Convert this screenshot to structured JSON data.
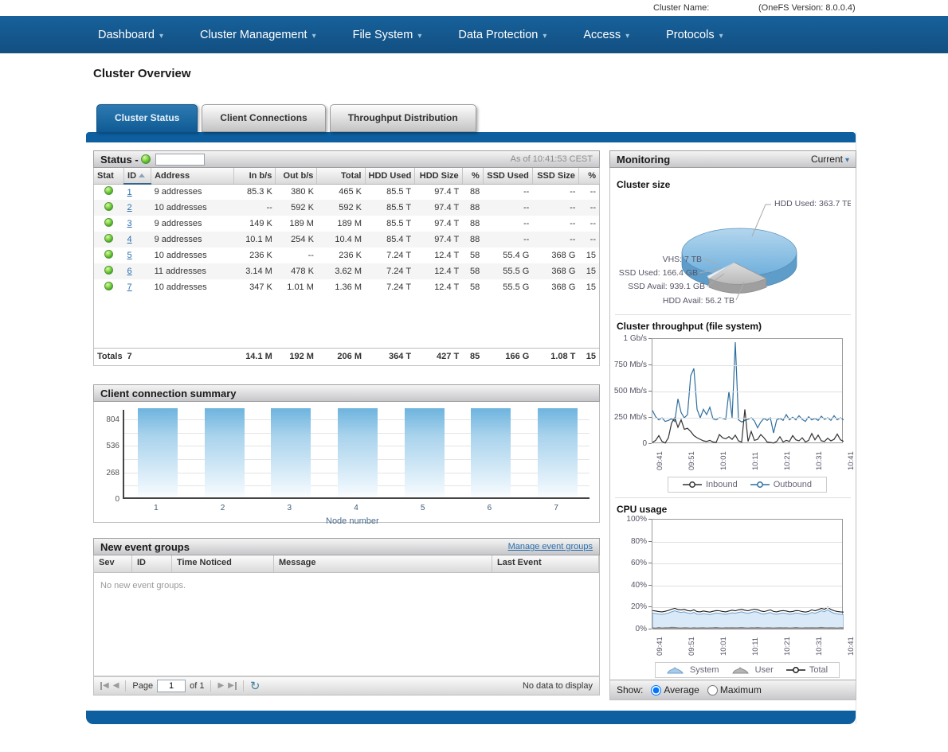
{
  "top_bar": {
    "cluster_name_label": "Cluster Name:",
    "version": "(OneFS Version: 8.0.0.4)"
  },
  "nav": {
    "items": [
      {
        "label": "Dashboard"
      },
      {
        "label": "Cluster Management"
      },
      {
        "label": "File System"
      },
      {
        "label": "Data Protection"
      },
      {
        "label": "Access"
      },
      {
        "label": "Protocols"
      }
    ]
  },
  "page": {
    "title": "Cluster Overview"
  },
  "tabs": [
    {
      "label": "Cluster Status",
      "active": true
    },
    {
      "label": "Client Connections",
      "active": false
    },
    {
      "label": "Throughput Distribution",
      "active": false
    }
  ],
  "status_panel": {
    "title": "Status -",
    "as_of": "As of 10:41:53 CEST",
    "table": {
      "headers": [
        "Stat",
        "ID",
        "Address",
        "In b/s",
        "Out b/s",
        "Total",
        "HDD Used",
        "HDD Size",
        "%",
        "SSD Used",
        "SSD Size",
        "%"
      ],
      "sorted_column": "ID",
      "rows": [
        [
          "1",
          "9 addresses",
          "85.3 K",
          "380 K",
          "465 K",
          "85.5 T",
          "97.4 T",
          "88",
          "--",
          "--",
          "--"
        ],
        [
          "2",
          "10 addresses",
          "--",
          "592 K",
          "592 K",
          "85.5 T",
          "97.4 T",
          "88",
          "--",
          "--",
          "--"
        ],
        [
          "3",
          "9 addresses",
          "149 K",
          "189 M",
          "189 M",
          "85.5 T",
          "97.4 T",
          "88",
          "--",
          "--",
          "--"
        ],
        [
          "4",
          "9 addresses",
          "10.1 M",
          "254 K",
          "10.4 M",
          "85.4 T",
          "97.4 T",
          "88",
          "--",
          "--",
          "--"
        ],
        [
          "5",
          "10 addresses",
          "236 K",
          "--",
          "236 K",
          "7.24 T",
          "12.4 T",
          "58",
          "55.4 G",
          "368 G",
          "15"
        ],
        [
          "6",
          "11 addresses",
          "3.14 M",
          "478 K",
          "3.62 M",
          "7.24 T",
          "12.4 T",
          "58",
          "55.5 G",
          "368 G",
          "15"
        ],
        [
          "7",
          "10 addresses",
          "347 K",
          "1.01 M",
          "1.36 M",
          "7.24 T",
          "12.4 T",
          "58",
          "55.5 G",
          "368 G",
          "15"
        ]
      ],
      "totals": [
        "Totals",
        "7",
        "",
        "14.1 M",
        "192 M",
        "206 M",
        "364 T",
        "427 T",
        "85",
        "166 G",
        "1.08 T",
        "15"
      ]
    }
  },
  "client_connections": {
    "title": "Client connection summary"
  },
  "event_groups": {
    "title": "New event groups",
    "manage_link": "Manage event groups",
    "headers": [
      "Sev",
      "ID",
      "Time Noticed",
      "Message",
      "Last Event"
    ],
    "empty_text": "No new event groups.",
    "pager": {
      "page_label": "Page",
      "page": "1",
      "of": "of 1",
      "status": "No data to display"
    }
  },
  "monitoring": {
    "title": "Monitoring",
    "mode": "Current",
    "cluster_size_title": "Cluster size",
    "throughput_title": "Cluster throughput (file system)",
    "cpu_title": "CPU usage",
    "show": {
      "label": "Show:",
      "options": [
        "Average",
        "Maximum"
      ],
      "selected": "Average"
    }
  },
  "colors": {
    "nav_blue": "#15578c",
    "bar_blue": "#0d5f9f",
    "link": "#2a6fad",
    "outbound": "#2f6f9f",
    "inbound": "#333333",
    "cpu_system_fill": "#d9e9f7",
    "cpu_system_stroke": "#6c9fce",
    "cpu_user": "#9f9f9f",
    "cpu_total": "#1a1a1a",
    "pie_blue": "#7db9e2",
    "pie_gray": "#c4c4c4",
    "status_green": "#54b82e"
  },
  "chart_data": [
    {
      "id": "client_connection_summary",
      "type": "bar",
      "title": "Client connection summary",
      "categories": [
        "1",
        "2",
        "3",
        "4",
        "5",
        "6",
        "7"
      ],
      "values": [
        900,
        900,
        900,
        900,
        900,
        900,
        900
      ],
      "note": "all bars reach the top of the plot (clipped)",
      "xlabel": "Node number",
      "ylabel": "",
      "yticks": [
        0,
        268,
        536,
        804
      ],
      "gridlines": [
        134,
        268,
        402,
        536,
        670,
        804
      ],
      "ylim": [
        0,
        900
      ],
      "legend": "none"
    },
    {
      "id": "cluster_size",
      "type": "pie",
      "title": "Cluster size",
      "slices": [
        {
          "label": "HDD Used",
          "value": 363.7,
          "unit": "TB"
        },
        {
          "label": "VHS",
          "value": 7.0,
          "unit": "TB"
        },
        {
          "label": "SSD Used",
          "value": 166.4,
          "unit": "GB"
        },
        {
          "label": "SSD Avail",
          "value": 939.1,
          "unit": "GB"
        },
        {
          "label": "HDD Avail",
          "value": 56.2,
          "unit": "TB"
        }
      ]
    },
    {
      "id": "cluster_throughput",
      "type": "line",
      "title": "Cluster throughput (file system)",
      "x_ticks": [
        "09:41",
        "09:51",
        "10:01",
        "10:11",
        "10:21",
        "10:31",
        "10:41"
      ],
      "ylim": [
        0,
        1000
      ],
      "yticks_labels": [
        "1 Gb/s",
        "750 Mb/s",
        "500 Mb/s",
        "250 Mb/s",
        "0"
      ],
      "yticks_values": [
        1000,
        750,
        500,
        250,
        0
      ],
      "unit": "Mb/s",
      "legend_position": "bottom",
      "series": [
        {
          "name": "Inbound",
          "values": [
            15,
            35,
            80,
            25,
            10,
            60,
            200,
            250,
            160,
            230,
            140,
            150,
            120,
            80,
            60,
            45,
            30,
            25,
            35,
            20,
            15,
            90,
            60,
            50,
            70,
            45,
            85,
            30,
            20,
            330,
            25,
            120,
            35,
            45,
            90,
            60,
            20,
            15,
            10,
            25,
            70,
            20,
            35,
            25,
            80,
            40,
            30,
            60,
            20,
            35,
            100,
            40,
            85,
            30,
            25,
            55,
            30,
            45,
            95,
            40,
            25
          ]
        },
        {
          "name": "Outbound",
          "values": [
            320,
            260,
            230,
            250,
            215,
            225,
            240,
            215,
            430,
            300,
            250,
            280,
            650,
            720,
            330,
            250,
            330,
            280,
            350,
            240,
            230,
            250,
            245,
            235,
            500,
            250,
            970,
            230,
            210,
            225,
            235,
            250,
            220,
            155,
            210,
            245,
            225,
            250,
            105,
            230,
            245,
            225,
            280,
            230,
            255,
            230,
            270,
            235,
            215,
            260,
            230,
            245,
            225,
            265,
            235,
            250,
            225,
            270,
            230,
            250,
            230
          ]
        }
      ]
    },
    {
      "id": "cpu_usage",
      "type": "area",
      "title": "CPU usage",
      "x_ticks": [
        "09:41",
        "09:51",
        "10:01",
        "10:11",
        "10:21",
        "10:31",
        "10:41"
      ],
      "ylim": [
        0,
        100
      ],
      "yticks_labels": [
        "100%",
        "80%",
        "60%",
        "40%",
        "20%",
        "0%"
      ],
      "yticks_values": [
        100,
        80,
        60,
        40,
        20,
        0
      ],
      "unit": "%",
      "legend_position": "bottom",
      "series": [
        {
          "name": "System",
          "style": "area",
          "values": [
            15,
            14.5,
            14,
            13.8,
            14.2,
            15,
            16,
            17,
            16,
            15.5,
            16,
            15,
            14.5,
            15.5,
            14,
            13.8,
            14.5,
            14,
            13.6,
            14.2,
            15,
            14.8,
            14.2,
            13.8,
            14.5,
            15.2,
            14.8,
            15.5,
            16,
            15.2,
            14.8,
            15.5,
            16.2,
            15.8,
            14.5,
            14,
            14.8,
            15.5,
            14.2,
            13.8,
            14.5,
            15,
            14.5,
            13.8,
            14.2,
            15,
            14.8,
            14,
            13.5,
            14.2,
            15.5,
            14.8,
            15.8,
            17,
            16.2,
            18,
            16,
            14.8,
            14.2,
            13.8,
            13.5
          ]
        },
        {
          "name": "User",
          "style": "area",
          "values": [
            1.5,
            1.2,
            1.8,
            1.4,
            1.6,
            1.5,
            2,
            1.8,
            1.5,
            1.4,
            1.6,
            1.5,
            1.3,
            1.7,
            1.4,
            1.5,
            1.6,
            1.4,
            1.5,
            1.6,
            1.8,
            1.5,
            1.4,
            1.6,
            1.5,
            1.7,
            1.5,
            1.6,
            1.8,
            1.5,
            1.4,
            1.6,
            1.5,
            1.8,
            1.5,
            1.4,
            1.6,
            1.5,
            1.4,
            1.5,
            1.7,
            1.5,
            1.6,
            1.4,
            1.5,
            1.8,
            1.5,
            1.4,
            1.6,
            1.5,
            1.7,
            1.5,
            1.6,
            1.9,
            1.6,
            1.5,
            1.7,
            1.5,
            1.4,
            1.6,
            1.5
          ]
        },
        {
          "name": "Total",
          "style": "line",
          "values": [
            17.2,
            16.8,
            16.2,
            16,
            16.5,
            17.3,
            18.4,
            19.3,
            18.2,
            17.8,
            18.3,
            17.2,
            16.8,
            17.8,
            16.2,
            16,
            16.8,
            16.2,
            15.8,
            16.5,
            17.2,
            17,
            16.4,
            16,
            16.8,
            17.5,
            17,
            17.8,
            18.3,
            17.5,
            17,
            17.8,
            18.5,
            18,
            16.8,
            16.2,
            17,
            17.8,
            16.4,
            16,
            16.8,
            17.2,
            16.8,
            16,
            16.4,
            17.2,
            17,
            16.2,
            15.8,
            16.4,
            17.8,
            17,
            18,
            19.2,
            18.4,
            20.3,
            18.2,
            17,
            16.4,
            16,
            15.8
          ]
        }
      ]
    }
  ]
}
